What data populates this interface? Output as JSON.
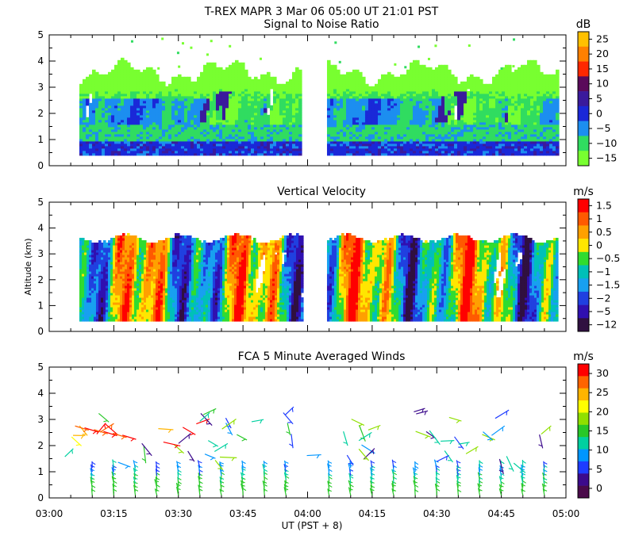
{
  "header": {
    "title": "T-REX   MAPR   3 Mar 06   05:00 UT   21:01   PST"
  },
  "x_axis": {
    "ticks": [
      "03:00",
      "03:15",
      "03:30",
      "03:45",
      "04:00",
      "04:15",
      "04:30",
      "04:45",
      "05:00"
    ],
    "xlabel": "UT  (PST + 8)",
    "range_minutes": [
      0,
      120
    ],
    "data_gap_minutes": [
      59,
      64
    ]
  },
  "chart_data": [
    {
      "type": "heatmap",
      "title": "Signal to Noise Ratio",
      "ylabel": "",
      "ylim": [
        0,
        5
      ],
      "yticks": [
        "0",
        "1",
        "2",
        "3",
        "4",
        "5"
      ],
      "colorbar": {
        "unit": "dB",
        "labels": [
          "25",
          "20",
          "15",
          "10",
          "5",
          "0",
          "−5",
          "−10",
          "−15"
        ],
        "colors": [
          "#ffc000",
          "#ff8000",
          "#ff2800",
          "#5a0a5a",
          "#3a1a9c",
          "#1a28d8",
          "#1c8ef0",
          "#30dc60",
          "#78ff30"
        ]
      }
    },
    {
      "type": "heatmap",
      "title": "Vertical Velocity",
      "ylabel": "Altitude (km)",
      "ylim": [
        0,
        5
      ],
      "yticks": [
        "0",
        "1",
        "2",
        "3",
        "4",
        "5"
      ],
      "colorbar": {
        "unit": "m/s",
        "labels": [
          "1.5",
          "1",
          "0.5",
          "0",
          "−0.5",
          "−1",
          "−1.5",
          "−2",
          "−5",
          "−12"
        ],
        "colors": [
          "#ff0000",
          "#ff5a00",
          "#ffa000",
          "#ffe600",
          "#30dc30",
          "#00c0b8",
          "#18a0f0",
          "#2040e0",
          "#3010b0",
          "#301040"
        ]
      }
    },
    {
      "type": "scatter",
      "title": "FCA 5 Minute Averaged Winds",
      "ylabel": "",
      "ylim": [
        0,
        5
      ],
      "yticks": [
        "0",
        "1",
        "2",
        "3",
        "4",
        "5"
      ],
      "colorbar": {
        "unit": "m/s",
        "labels": [
          "30",
          "25",
          "20",
          "15",
          "10",
          "5",
          "0"
        ],
        "colors": [
          "#ff0000",
          "#ff6400",
          "#ffb400",
          "#ffff00",
          "#90e000",
          "#28c828",
          "#00d0a0",
          "#0096ff",
          "#1e3cff",
          "#3c0a8c",
          "#4a0a4a"
        ]
      }
    }
  ]
}
